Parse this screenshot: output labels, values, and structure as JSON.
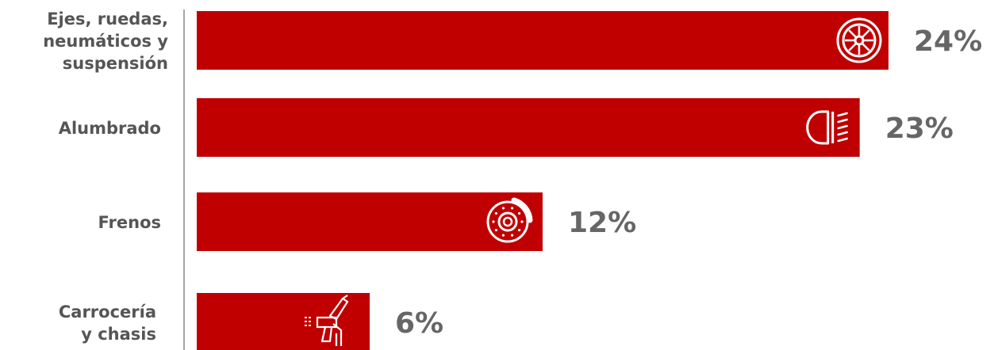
{
  "chart_data": {
    "type": "bar",
    "orientation": "horizontal",
    "categories": [
      [
        "Ejes, ruedas,",
        "neumáticos y",
        "suspensión"
      ],
      [
        "Alumbrado"
      ],
      [
        "Frenos"
      ],
      [
        "Carrocería",
        "y chasis"
      ]
    ],
    "values": [
      24,
      23,
      12,
      6
    ],
    "value_labels": [
      "24%",
      "23%",
      "12%",
      "6%"
    ],
    "icons": [
      "wheel-icon",
      "headlight-icon",
      "brake-disc-icon",
      "spray-gun-icon"
    ],
    "xlim": [
      0,
      26
    ],
    "grid": false,
    "legend": "none"
  },
  "colors": {
    "bar": "#c00000",
    "icon": "#ffffff",
    "axis": "#888888",
    "category_text": "#555555",
    "value_text": "#666666"
  }
}
